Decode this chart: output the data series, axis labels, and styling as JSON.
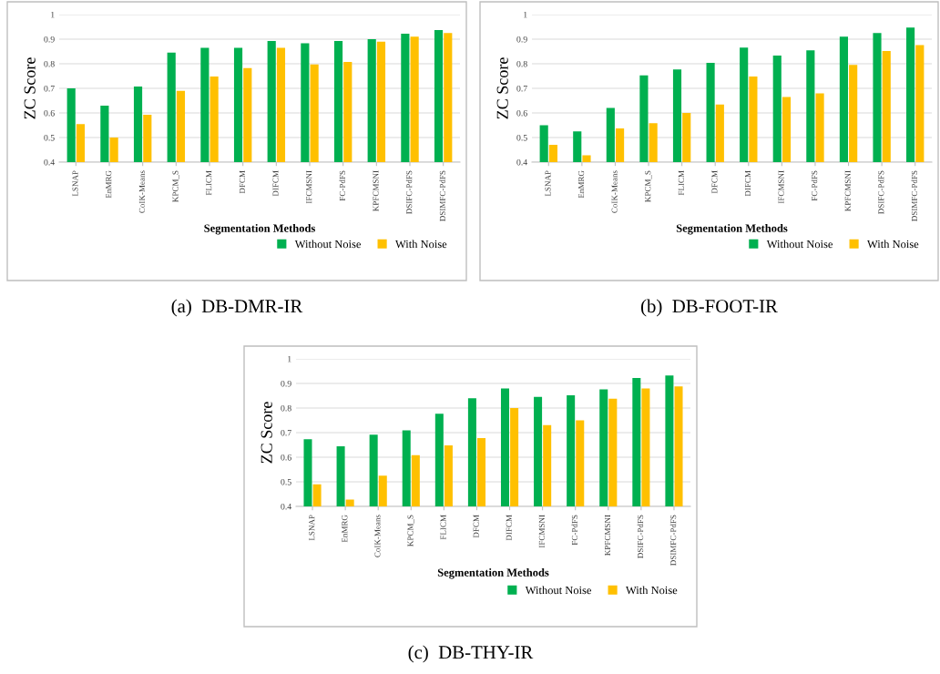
{
  "chart_data": [
    {
      "type": "bar",
      "title": "(a)  DB-DMR-IR",
      "xlabel": "Segmentation Methods",
      "ylabel": "ZC Score",
      "categories": [
        "LSNAP",
        "EnMRG",
        "CoIK-Means",
        "KPCM_S",
        "FLICM",
        "DFCM",
        "DIFCM",
        "IFCMSNI",
        "FC-PdFS",
        "KPFCMSNI",
        "DSIFC-PdFS",
        "DSIMFC-PdFS"
      ],
      "series": [
        {
          "name": "Without Noise",
          "color": "#00b050",
          "values": [
            0.7,
            0.63,
            0.707,
            0.845,
            0.865,
            0.865,
            0.893,
            0.883,
            0.893,
            0.9,
            0.922,
            0.937
          ]
        },
        {
          "name": "With Noise",
          "color": "#ffc000",
          "values": [
            0.555,
            0.5,
            0.593,
            0.69,
            0.748,
            0.782,
            0.865,
            0.797,
            0.807,
            0.89,
            0.91,
            0.925
          ]
        }
      ],
      "ylim": [
        0.4,
        1
      ],
      "yticks": [
        0.4,
        0.5,
        0.6,
        0.7,
        0.8,
        0.9,
        1
      ],
      "grid": "y",
      "legend": "bottom right"
    },
    {
      "type": "bar",
      "title": "(b)  DB-FOOT-IR",
      "xlabel": "Segmentation Methods",
      "ylabel": "ZC Score",
      "categories": [
        "LSNAP",
        "EnMRG",
        "CoIK-Means",
        "KPCM_S",
        "FLICM",
        "DFCM",
        "DIFCM",
        "IFCMSNI",
        "FC-PdFS",
        "KPFCMSNI",
        "DSIFC-PdFS",
        "DSIMFC-PdFS"
      ],
      "series": [
        {
          "name": "Without Noise",
          "color": "#00b050",
          "values": [
            0.55,
            0.525,
            0.62,
            0.753,
            0.777,
            0.804,
            0.866,
            0.833,
            0.855,
            0.91,
            0.925,
            0.947
          ]
        },
        {
          "name": "With Noise",
          "color": "#ffc000",
          "values": [
            0.47,
            0.428,
            0.537,
            0.558,
            0.6,
            0.634,
            0.748,
            0.665,
            0.68,
            0.795,
            0.852,
            0.876
          ]
        }
      ],
      "ylim": [
        0.4,
        1
      ],
      "yticks": [
        0.4,
        0.5,
        0.6,
        0.7,
        0.8,
        0.9,
        1
      ],
      "grid": "y",
      "legend": "bottom right"
    },
    {
      "type": "bar",
      "title": "(c)  DB-THY-IR",
      "xlabel": "Segmentation Methods",
      "ylabel": "ZC Score",
      "categories": [
        "LSNAP",
        "EnMRG",
        "CoIK-Means",
        "KPCM_S",
        "FLICM",
        "DFCM",
        "DIFCM",
        "IFCMSNI",
        "FC-PdFS",
        "KPFCMSNI",
        "DSIFC-PdFS",
        "DSIMFC-PdFS"
      ],
      "series": [
        {
          "name": "Without Noise",
          "color": "#00b050",
          "values": [
            0.673,
            0.644,
            0.692,
            0.709,
            0.777,
            0.84,
            0.88,
            0.845,
            0.852,
            0.876,
            0.922,
            0.932
          ]
        },
        {
          "name": "With Noise",
          "color": "#ffc000",
          "values": [
            0.49,
            0.428,
            0.525,
            0.608,
            0.648,
            0.678,
            0.8,
            0.731,
            0.75,
            0.838,
            0.88,
            0.888
          ]
        }
      ],
      "ylim": [
        0.4,
        1
      ],
      "yticks": [
        0.4,
        0.5,
        0.6,
        0.7,
        0.8,
        0.9,
        1
      ],
      "grid": "y",
      "legend": "bottom right"
    }
  ]
}
